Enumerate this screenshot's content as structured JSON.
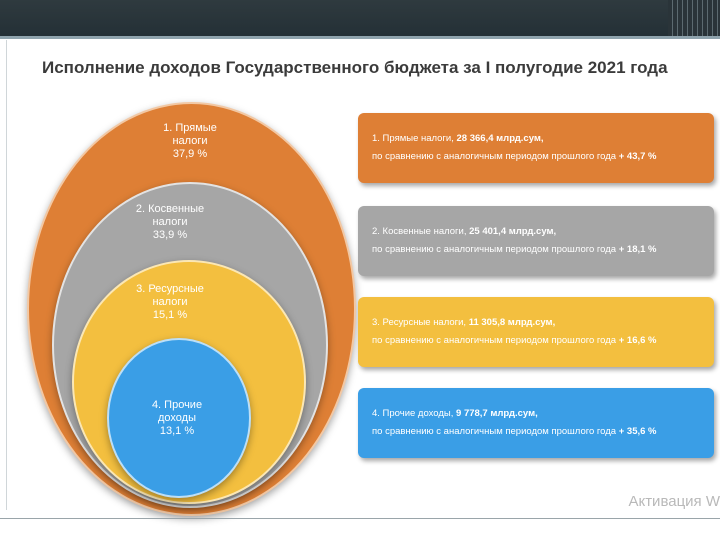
{
  "title": "Исполнение доходов Государственного бюджета за I полугодие 2021 года",
  "colors": {
    "direct": "#de7f35",
    "indirect": "#a6a6a6",
    "resource": "#f3bf3f",
    "other": "#3a9ee6"
  },
  "ellipses": [
    {
      "line1": "1. Прямые",
      "line2": "налоги",
      "share": "37,9 %"
    },
    {
      "line1": "2. Косвенные",
      "line2": "налоги",
      "share": "33,9 %"
    },
    {
      "line1": "3. Ресурсные",
      "line2": "налоги",
      "share": "15,1 %"
    },
    {
      "line1": "4. Прочие",
      "line2": "доходы",
      "share": "13,1 %"
    }
  ],
  "cards": [
    {
      "prefix": "1. Прямые налоги, ",
      "amount": "28 366,4 млрд.сум,",
      "comparison": "по сравнению с аналогичным периодом прошлого года ",
      "growth": "+ 43,7 %"
    },
    {
      "prefix": "2. Косвенные налоги, ",
      "amount": "25 401,4 млрд.сум,",
      "comparison": "по сравнению с аналогичным периодом прошлого года ",
      "growth": "+ 18,1 %"
    },
    {
      "prefix": "3. Ресурсные налоги, ",
      "amount": "11 305,8 млрд.сум,",
      "comparison": "по сравнению с аналогичным периодом прошлого года ",
      "growth": "+ 16,6 %"
    },
    {
      "prefix": "4. Прочие доходы, ",
      "amount": "9 778,7 млрд.сум,",
      "comparison": "по сравнению с аналогичным периодом прошлого года ",
      "growth": "+ 35,6 %"
    }
  ],
  "watermark": "Активация W"
}
